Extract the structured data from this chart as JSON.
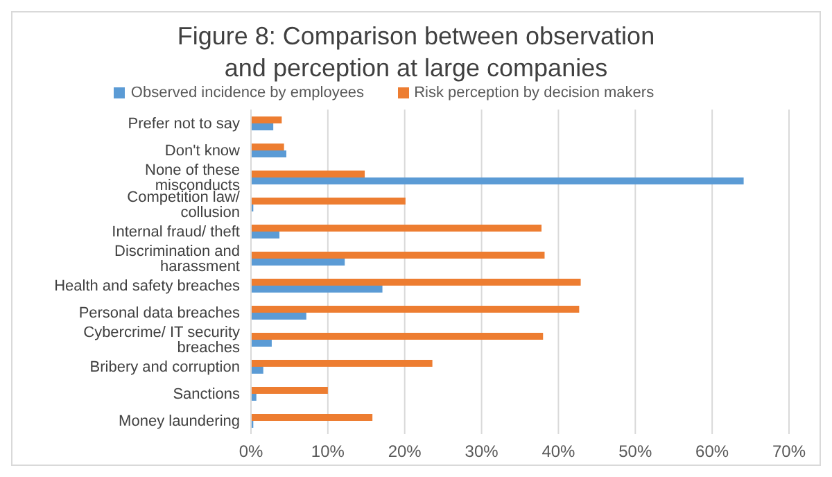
{
  "chart_data": {
    "type": "bar",
    "orientation": "horizontal",
    "title": "Figure 8: Comparison between observation and perception at large companies",
    "categories": [
      "Prefer not to say",
      "Don't know",
      "None of these misconducts",
      "Competition law/ collusion",
      "Internal fraud/ theft",
      "Discrimination and harassment",
      "Health and safety breaches",
      "Personal data breaches",
      "Cybercrime/ IT security breaches",
      "Bribery and corruption",
      "Sanctions",
      "Money laundering"
    ],
    "series": [
      {
        "name": "Risk perception by decision makers",
        "color": "#ed7d31",
        "values": [
          4.0,
          4.3,
          14.8,
          20.1,
          37.8,
          38.2,
          42.9,
          42.7,
          38.0,
          23.6,
          10.0,
          15.8
        ]
      },
      {
        "name": "Observed incidence by employees",
        "color": "#5b9bd5",
        "values": [
          2.9,
          4.6,
          64.1,
          0.3,
          3.7,
          12.2,
          17.1,
          7.2,
          2.7,
          1.6,
          0.7,
          0.3
        ]
      }
    ],
    "xlim": [
      0,
      70
    ],
    "xticks": [
      {
        "value": 0,
        "label": "0%"
      },
      {
        "value": 10,
        "label": "10%"
      },
      {
        "value": 20,
        "label": "20%"
      },
      {
        "value": 30,
        "label": "30%"
      },
      {
        "value": 40,
        "label": "40%"
      },
      {
        "value": 50,
        "label": "50%"
      },
      {
        "value": 60,
        "label": "60%"
      },
      {
        "value": 70,
        "label": "70%"
      }
    ],
    "grid": "x",
    "legend": "top"
  }
}
